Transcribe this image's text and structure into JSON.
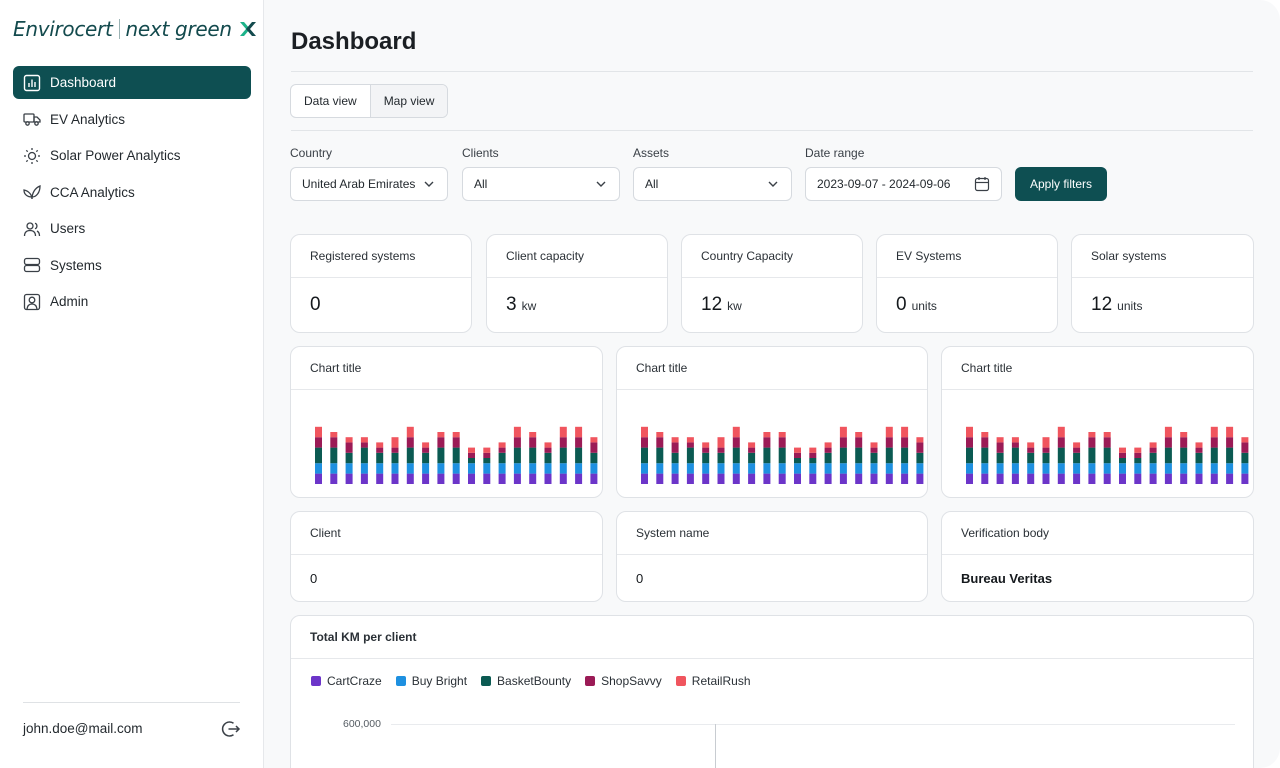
{
  "colors": {
    "brand": "#0e4f52",
    "series": [
      "#6c35c9",
      "#1e90e0",
      "#0b5a52",
      "#9b1b56",
      "#f0555e"
    ]
  },
  "sidebar": {
    "logo": {
      "primary": "Envirocert",
      "secondary": "next green"
    },
    "items": [
      {
        "label": "Dashboard",
        "icon": "bar-chart-icon",
        "active": true
      },
      {
        "label": "EV Analytics",
        "icon": "truck-icon"
      },
      {
        "label": "Solar Power Analytics",
        "icon": "sun-icon"
      },
      {
        "label": "CCA Analytics",
        "icon": "leaf-icon"
      },
      {
        "label": "Users",
        "icon": "users-icon"
      },
      {
        "label": "Systems",
        "icon": "server-icon"
      },
      {
        "label": "Admin",
        "icon": "user-square-icon"
      }
    ],
    "user_email": "john.doe@mail.com"
  },
  "main": {
    "title": "Dashboard",
    "view_tabs": [
      "Data view",
      "Map view"
    ],
    "filters": {
      "country": {
        "label": "Country",
        "value": "United Arab Emirates"
      },
      "clients": {
        "label": "Clients",
        "value": "All"
      },
      "assets": {
        "label": "Assets",
        "value": "All"
      },
      "date_range": {
        "label": "Date range",
        "value": "2023-09-07 - 2024-09-06"
      },
      "apply_label": "Apply filters"
    },
    "stats": [
      {
        "label": "Registered systems",
        "value": "0",
        "unit": ""
      },
      {
        "label": "Client capacity",
        "value": "3",
        "unit": "kw"
      },
      {
        "label": "Country Capacity",
        "value": "12",
        "unit": "kw"
      },
      {
        "label": "EV Systems",
        "value": "0",
        "unit": "units"
      },
      {
        "label": "Solar systems",
        "value": "12",
        "unit": "units"
      }
    ],
    "mini_charts": [
      {
        "title": "Chart title"
      },
      {
        "title": "Chart title"
      },
      {
        "title": "Chart title"
      }
    ],
    "info_cards": [
      {
        "label": "Client",
        "value": "0"
      },
      {
        "label": "System name",
        "value": "0"
      },
      {
        "label": "Verification body",
        "value": "Bureau Veritas"
      }
    ],
    "km_chart": {
      "title": "Total KM per client",
      "legend": [
        "CartCraze",
        "Buy Bright",
        "BasketBounty",
        "ShopSavvy",
        "RetailRush"
      ],
      "y_tick_top": "600,000"
    }
  },
  "chart_data": [
    {
      "type": "bar",
      "stacked": true,
      "title": "",
      "series": [
        {
          "values": [
            2,
            2,
            2,
            2,
            2,
            2,
            2,
            2,
            2,
            2,
            2,
            2,
            2,
            2,
            2,
            2,
            2,
            2,
            2,
            2
          ]
        },
        {
          "values": [
            2,
            2,
            2,
            2,
            2,
            2,
            2,
            2,
            2,
            2,
            2,
            2,
            2,
            2,
            2,
            2,
            2,
            2,
            2,
            2
          ]
        },
        {
          "values": [
            3,
            3,
            2,
            3,
            2,
            2,
            3,
            2,
            3,
            3,
            1,
            1,
            2,
            3,
            3,
            2,
            3,
            3,
            2,
            2
          ]
        },
        {
          "values": [
            2,
            2,
            2,
            1,
            1,
            1,
            2,
            1,
            2,
            2,
            1,
            1,
            1,
            2,
            2,
            1,
            2,
            2,
            2,
            1
          ]
        },
        {
          "values": [
            2,
            1,
            1,
            1,
            1,
            2,
            2,
            1,
            1,
            1,
            1,
            1,
            1,
            2,
            1,
            1,
            2,
            2,
            1,
            1
          ]
        }
      ]
    },
    {
      "type": "bar",
      "stacked": true,
      "title": "",
      "series": [
        {
          "values": [
            2,
            2,
            2,
            2,
            2,
            2,
            2,
            2,
            2,
            2,
            2,
            2,
            2,
            2,
            2,
            2,
            2,
            2,
            2,
            2
          ]
        },
        {
          "values": [
            2,
            2,
            2,
            2,
            2,
            2,
            2,
            2,
            2,
            2,
            2,
            2,
            2,
            2,
            2,
            2,
            2,
            2,
            2,
            2
          ]
        },
        {
          "values": [
            3,
            3,
            2,
            3,
            2,
            2,
            3,
            2,
            3,
            3,
            1,
            1,
            2,
            3,
            3,
            2,
            3,
            3,
            2,
            2
          ]
        },
        {
          "values": [
            2,
            2,
            2,
            1,
            1,
            1,
            2,
            1,
            2,
            2,
            1,
            1,
            1,
            2,
            2,
            1,
            2,
            2,
            2,
            1
          ]
        },
        {
          "values": [
            2,
            1,
            1,
            1,
            1,
            2,
            2,
            1,
            1,
            1,
            1,
            1,
            1,
            2,
            1,
            1,
            2,
            2,
            1,
            1
          ]
        }
      ]
    },
    {
      "type": "bar",
      "stacked": true,
      "title": "",
      "series": [
        {
          "values": [
            2,
            2,
            2,
            2,
            2,
            2,
            2,
            2,
            2,
            2,
            2,
            2,
            2,
            2,
            2,
            2,
            2,
            2,
            2,
            2
          ]
        },
        {
          "values": [
            2,
            2,
            2,
            2,
            2,
            2,
            2,
            2,
            2,
            2,
            2,
            2,
            2,
            2,
            2,
            2,
            2,
            2,
            2,
            2
          ]
        },
        {
          "values": [
            3,
            3,
            2,
            3,
            2,
            2,
            3,
            2,
            3,
            3,
            1,
            1,
            2,
            3,
            3,
            2,
            3,
            3,
            2,
            2
          ]
        },
        {
          "values": [
            2,
            2,
            2,
            1,
            1,
            1,
            2,
            1,
            2,
            2,
            1,
            1,
            1,
            2,
            2,
            1,
            2,
            2,
            2,
            1
          ]
        },
        {
          "values": [
            2,
            1,
            1,
            1,
            1,
            2,
            2,
            1,
            1,
            1,
            1,
            1,
            1,
            2,
            1,
            1,
            2,
            2,
            1,
            1
          ]
        }
      ]
    },
    {
      "type": "bar",
      "title": "Total KM per client",
      "series": [
        {
          "name": "CartCraze",
          "values": []
        },
        {
          "name": "Buy Bright",
          "values": []
        },
        {
          "name": "BasketBounty",
          "values": []
        },
        {
          "name": "ShopSavvy",
          "values": []
        },
        {
          "name": "RetailRush",
          "values": []
        }
      ],
      "ylim": [
        0,
        600000
      ]
    }
  ]
}
